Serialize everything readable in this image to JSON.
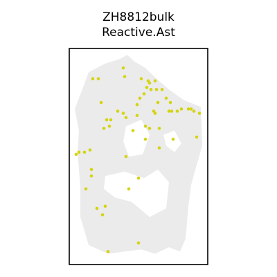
{
  "chart_data": {
    "type": "scatter",
    "title": "ZH8812bulk",
    "subtitle": "Reactive.Ast",
    "xlabel": "",
    "ylabel": "",
    "grid": false,
    "colors": {
      "tissue": "#ebebeb",
      "highlight": "#d4d414",
      "frame": "#000000"
    },
    "tissue_outline": [
      [
        0.36,
        0.95
      ],
      [
        0.42,
        0.97
      ],
      [
        0.47,
        0.94
      ],
      [
        0.55,
        0.91
      ],
      [
        0.63,
        0.86
      ],
      [
        0.72,
        0.81
      ],
      [
        0.83,
        0.76
      ],
      [
        0.95,
        0.73
      ],
      [
        0.96,
        0.55
      ],
      [
        0.92,
        0.46
      ],
      [
        0.88,
        0.37
      ],
      [
        0.86,
        0.27
      ],
      [
        0.84,
        0.12
      ],
      [
        0.8,
        0.06
      ],
      [
        0.72,
        0.08
      ],
      [
        0.62,
        0.05
      ],
      [
        0.52,
        0.07
      ],
      [
        0.4,
        0.06
      ],
      [
        0.28,
        0.05
      ],
      [
        0.14,
        0.09
      ],
      [
        0.08,
        0.22
      ],
      [
        0.08,
        0.36
      ],
      [
        0.06,
        0.52
      ],
      [
        0.07,
        0.62
      ],
      [
        0.04,
        0.72
      ],
      [
        0.1,
        0.82
      ],
      [
        0.14,
        0.89
      ],
      [
        0.26,
        0.93
      ]
    ],
    "tissue_holes": [
      [
        [
          0.41,
          0.64
        ],
        [
          0.52,
          0.67
        ],
        [
          0.58,
          0.6
        ],
        [
          0.53,
          0.51
        ],
        [
          0.43,
          0.5
        ],
        [
          0.39,
          0.57
        ]
      ],
      [
        [
          0.26,
          0.41
        ],
        [
          0.4,
          0.43
        ],
        [
          0.54,
          0.4
        ],
        [
          0.64,
          0.44
        ],
        [
          0.72,
          0.38
        ],
        [
          0.7,
          0.26
        ],
        [
          0.58,
          0.22
        ],
        [
          0.45,
          0.29
        ],
        [
          0.33,
          0.31
        ],
        [
          0.25,
          0.35
        ]
      ],
      [
        [
          0.68,
          0.6
        ],
        [
          0.76,
          0.62
        ],
        [
          0.81,
          0.56
        ],
        [
          0.76,
          0.52
        ],
        [
          0.7,
          0.55
        ]
      ]
    ],
    "points": [
      {
        "x": 0.39,
        "y": 0.91
      },
      {
        "x": 0.4,
        "y": 0.87
      },
      {
        "x": 0.17,
        "y": 0.86
      },
      {
        "x": 0.21,
        "y": 0.86
      },
      {
        "x": 0.52,
        "y": 0.86
      },
      {
        "x": 0.57,
        "y": 0.85
      },
      {
        "x": 0.58,
        "y": 0.84
      },
      {
        "x": 0.62,
        "y": 0.85
      },
      {
        "x": 0.56,
        "y": 0.82
      },
      {
        "x": 0.59,
        "y": 0.81
      },
      {
        "x": 0.63,
        "y": 0.81
      },
      {
        "x": 0.67,
        "y": 0.81
      },
      {
        "x": 0.54,
        "y": 0.79
      },
      {
        "x": 0.51,
        "y": 0.77
      },
      {
        "x": 0.7,
        "y": 0.77
      },
      {
        "x": 0.73,
        "y": 0.75
      },
      {
        "x": 0.23,
        "y": 0.75
      },
      {
        "x": 0.64,
        "y": 0.75
      },
      {
        "x": 0.49,
        "y": 0.74
      },
      {
        "x": 0.35,
        "y": 0.71
      },
      {
        "x": 0.39,
        "y": 0.7
      },
      {
        "x": 0.61,
        "y": 0.71
      },
      {
        "x": 0.62,
        "y": 0.7
      },
      {
        "x": 0.72,
        "y": 0.71
      },
      {
        "x": 0.74,
        "y": 0.71
      },
      {
        "x": 0.78,
        "y": 0.71
      },
      {
        "x": 0.81,
        "y": 0.72
      },
      {
        "x": 0.86,
        "y": 0.72
      },
      {
        "x": 0.88,
        "y": 0.72
      },
      {
        "x": 0.9,
        "y": 0.71
      },
      {
        "x": 0.94,
        "y": 0.7
      },
      {
        "x": 0.49,
        "y": 0.69
      },
      {
        "x": 0.41,
        "y": 0.68
      },
      {
        "x": 0.27,
        "y": 0.67
      },
      {
        "x": 0.3,
        "y": 0.67
      },
      {
        "x": 0.29,
        "y": 0.64
      },
      {
        "x": 0.25,
        "y": 0.63
      },
      {
        "x": 0.55,
        "y": 0.64
      },
      {
        "x": 0.58,
        "y": 0.63
      },
      {
        "x": 0.65,
        "y": 0.63
      },
      {
        "x": 0.46,
        "y": 0.62
      },
      {
        "x": 0.92,
        "y": 0.59
      },
      {
        "x": 0.55,
        "y": 0.58
      },
      {
        "x": 0.75,
        "y": 0.58
      },
      {
        "x": 0.65,
        "y": 0.54
      },
      {
        "x": 0.05,
        "y": 0.51
      },
      {
        "x": 0.07,
        "y": 0.52
      },
      {
        "x": 0.11,
        "y": 0.52
      },
      {
        "x": 0.15,
        "y": 0.53
      },
      {
        "x": 0.41,
        "y": 0.5
      },
      {
        "x": 0.16,
        "y": 0.44
      },
      {
        "x": 0.16,
        "y": 0.41
      },
      {
        "x": 0.5,
        "y": 0.4
      },
      {
        "x": 0.12,
        "y": 0.35
      },
      {
        "x": 0.43,
        "y": 0.35
      },
      {
        "x": 0.2,
        "y": 0.26
      },
      {
        "x": 0.26,
        "y": 0.27
      },
      {
        "x": 0.24,
        "y": 0.23
      },
      {
        "x": 0.5,
        "y": 0.1
      },
      {
        "x": 0.28,
        "y": 0.06
      }
    ],
    "xlim": [
      0,
      1
    ],
    "ylim": [
      0,
      1
    ]
  }
}
